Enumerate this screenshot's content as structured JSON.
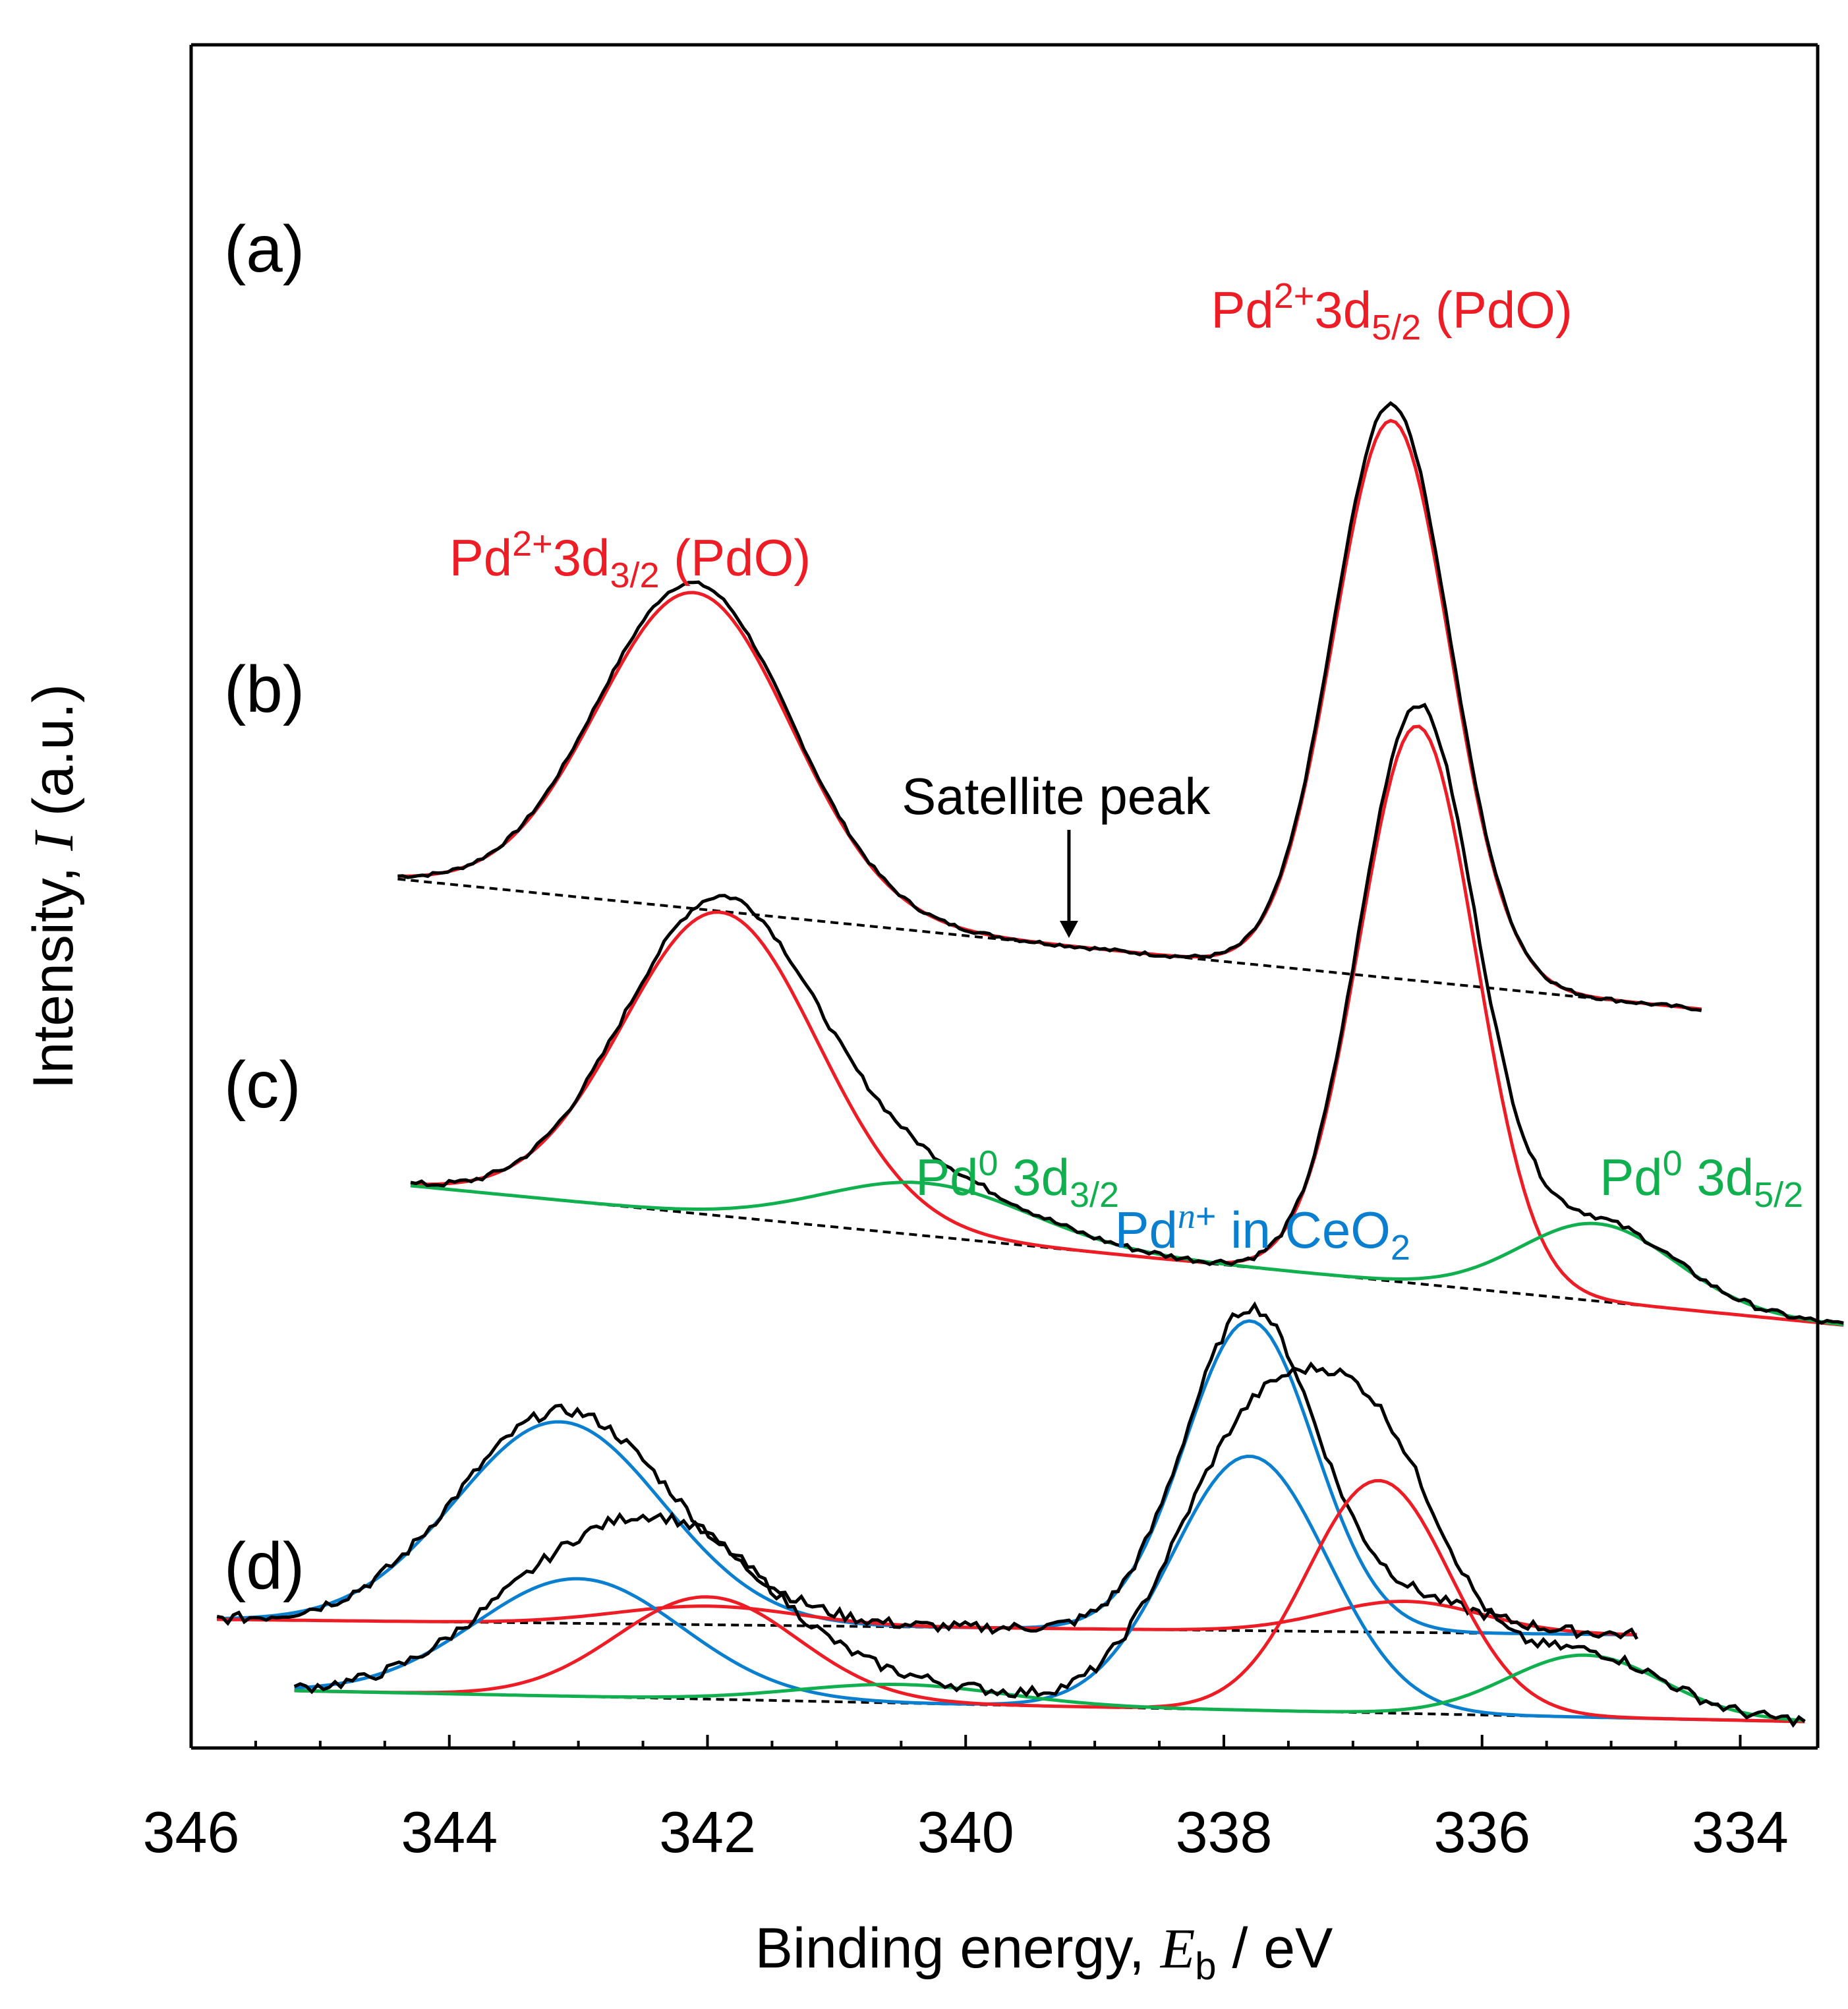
{
  "chart_data": {
    "type": "line",
    "xlabel_prefix": "Binding energy, ",
    "xlabel_var": "E",
    "xlabel_sub": "b",
    "xlabel_suffix": " / eV",
    "ylabel_prefix": "Intensity, ",
    "ylabel_var": "I",
    "ylabel_suffix": " (a.u.)",
    "xlim": [
      346,
      333.4
    ],
    "xticks": [
      346,
      344,
      342,
      340,
      338,
      336,
      334
    ],
    "colors": {
      "measured": "#000000",
      "PdO": "#ee1c25",
      "Pd0": "#10b04f",
      "PdCeO2": "#0a7fcf",
      "background": "#000000"
    },
    "panels": [
      {
        "label": "(a)",
        "offset": 2.3,
        "x_range": [
          344.4,
          334.3
        ],
        "background": [
          0.42,
          0.0
        ],
        "peaks": {
          "PdO": [
            [
              342.1,
              1.02,
              0.75
            ],
            [
              336.7,
              1.8,
              0.45
            ]
          ]
        },
        "annotations": [
          {
            "main": "Pd",
            "sup": "2+",
            "mid": "3d",
            "sub": "3/2",
            "tail": " (PdO)",
            "color": "#ee1c25",
            "x": 342.6,
            "y": 1.4
          },
          {
            "main": "Pd",
            "sup": "2+",
            "mid": "3d",
            "sub": "5/2",
            "tail": " (PdO)",
            "color": "#ee1c25",
            "x": 336.7,
            "y": 2.2
          },
          {
            "main": "Satellite peak",
            "color": "#000000",
            "x": 339.3,
            "y": 0.63
          }
        ],
        "arrow_x": 339.2
      },
      {
        "label": "(b)",
        "offset": 1.28,
        "x_range": [
          344.3,
          333.2
        ],
        "background": [
          0.45,
          0.0
        ],
        "peaks": {
          "PdO": [
            [
              341.9,
              0.98,
              0.75
            ],
            [
              336.5,
              1.8,
              0.45
            ]
          ],
          "Pd0": [
            [
              340.3,
              0.17,
              0.8
            ],
            [
              335.1,
              0.25,
              0.6
            ]
          ]
        },
        "annotations": [
          {
            "main": "Pd",
            "sup": "0",
            "mid": " 3d",
            "sub": "3/2",
            "color": "#10b04f",
            "x": 339.6,
            "y": 0.42
          },
          {
            "main": "Pd",
            "sup": "0",
            "mid": " 3d",
            "sub": "5/2",
            "color": "#10b04f",
            "x": 334.3,
            "y": 0.42
          }
        ]
      },
      {
        "label": "(c)",
        "offset": 0.28,
        "x_range": [
          345.8,
          334.8
        ],
        "background": [
          0.05,
          0.0
        ],
        "peaks": {
          "PdCeO2": [
            [
              343.15,
              0.65,
              0.8
            ],
            [
              337.8,
              1.0,
              0.5
            ]
          ],
          "PdO": [
            [
              342.0,
              0.06,
              0.7
            ],
            [
              336.6,
              0.1,
              0.6
            ]
          ]
        },
        "annotations": [
          {
            "main": "Pd",
            "supItalic": "n",
            "sup": "+",
            "mid": " in CeO",
            "sub": "2",
            "color": "#0a7fcf",
            "x": 337.7,
            "y": 1.25
          }
        ]
      },
      {
        "label": "(d)",
        "offset": 0.0,
        "x_range": [
          345.2,
          333.5
        ],
        "background": [
          0.1,
          0.0
        ],
        "peaks": {
          "PdCeO2": [
            [
              343.0,
              0.38,
              0.8
            ],
            [
              337.8,
              0.82,
              0.6
            ]
          ],
          "PdO": [
            [
              342.0,
              0.33,
              0.7
            ],
            [
              336.8,
              0.75,
              0.55
            ]
          ],
          "Pd0": [
            [
              340.5,
              0.06,
              0.8
            ],
            [
              335.2,
              0.2,
              0.6
            ]
          ]
        },
        "annotations": []
      }
    ]
  }
}
